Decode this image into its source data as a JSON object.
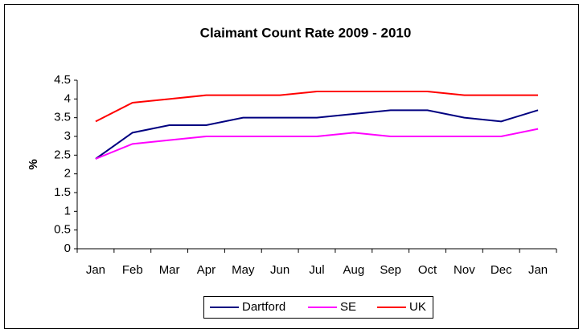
{
  "chart_data": {
    "type": "line",
    "title": "Claimant Count Rate 2009 - 2010",
    "y_label": "%",
    "categories": [
      "Jan",
      "Feb",
      "Mar",
      "Apr",
      "May",
      "Jun",
      "Jul",
      "Aug",
      "Sep",
      "Oct",
      "Nov",
      "Dec",
      "Jan"
    ],
    "series": [
      {
        "name": "Dartford",
        "color": "#000080",
        "values": [
          2.4,
          3.1,
          3.3,
          3.3,
          3.5,
          3.5,
          3.5,
          3.6,
          3.7,
          3.7,
          3.5,
          3.4,
          3.7
        ]
      },
      {
        "name": "SE",
        "color": "#ff00ff",
        "values": [
          2.4,
          2.8,
          2.9,
          3.0,
          3.0,
          3.0,
          3.0,
          3.1,
          3.0,
          3.0,
          3.0,
          3.0,
          3.2
        ]
      },
      {
        "name": "UK",
        "color": "#ff0000",
        "values": [
          3.4,
          3.9,
          4.0,
          4.1,
          4.1,
          4.1,
          4.2,
          4.2,
          4.2,
          4.2,
          4.1,
          4.1,
          4.1
        ]
      }
    ],
    "ylim": [
      0,
      4.5
    ],
    "yticks": [
      0,
      0.5,
      1,
      1.5,
      2,
      2.5,
      3,
      3.5,
      4,
      4.5
    ],
    "grid": false,
    "legend": "bottom"
  }
}
